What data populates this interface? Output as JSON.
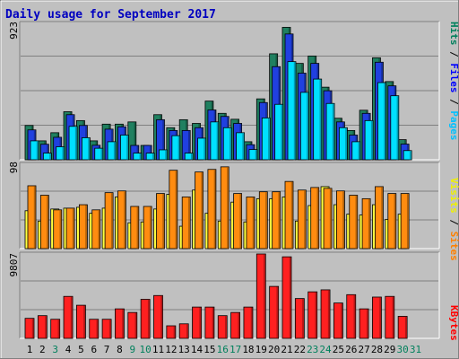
{
  "chart_data": [
    {
      "panel": "pages-files-hits",
      "type": "bar",
      "title": "Daily usage for September 2017",
      "y_max_label": "923",
      "ylim": [
        0,
        923
      ],
      "grid": true,
      "legend": {
        "placement": "right",
        "items": [
          {
            "text": "Hits",
            "color": "#00805c"
          },
          {
            "text": "Files",
            "color": "#0000ff"
          },
          {
            "text": "Pages",
            "color": "#00c0ff"
          }
        ],
        "separator": " / "
      },
      "categories": [
        "1",
        "2",
        "3",
        "4",
        "5",
        "6",
        "7",
        "8",
        "9",
        "10",
        "11",
        "12",
        "13",
        "14",
        "15",
        "16",
        "17",
        "18",
        "19",
        "20",
        "21",
        "22",
        "23",
        "24",
        "25",
        "26",
        "27",
        "28",
        "29",
        "30",
        "31"
      ],
      "series": [
        {
          "name": "Hits",
          "color": "#208060",
          "values": [
            232,
            128,
            183,
            325,
            265,
            128,
            241,
            241,
            256,
            97,
            305,
            217,
            271,
            246,
            397,
            314,
            274,
            122,
            412,
            717,
            896,
            652,
            702,
            491,
            281,
            198,
            335,
            690,
            529,
            136,
            0
          ]
        },
        {
          "name": "Files",
          "color": "#2040e0",
          "values": [
            202,
            105,
            152,
            305,
            232,
            98,
            207,
            223,
            97,
            97,
            271,
            198,
            198,
            217,
            337,
            293,
            246,
            102,
            387,
            630,
            851,
            586,
            652,
            467,
            256,
            167,
            314,
            660,
            500,
            106,
            0
          ]
        },
        {
          "name": "Pages",
          "color": "#00e0ff",
          "values": [
            128,
            45,
            88,
            226,
            149,
            78,
            122,
            167,
            45,
            45,
            67,
            163,
            45,
            146,
            256,
            217,
            183,
            69,
            283,
            375,
            664,
            456,
            546,
            381,
            217,
            122,
            265,
            522,
            433,
            62,
            0
          ]
        }
      ]
    },
    {
      "panel": "sites-visits",
      "type": "bar",
      "y_max_label": "98",
      "ylim": [
        0,
        98
      ],
      "grid": true,
      "legend": {
        "placement": "right",
        "items": [
          {
            "text": "Visits",
            "color": "#f0f000"
          },
          {
            "text": "Sites",
            "color": "#ff8000"
          }
        ],
        "separator": " / "
      },
      "categories": [
        "1",
        "2",
        "3",
        "4",
        "5",
        "6",
        "7",
        "8",
        "9",
        "10",
        "11",
        "12",
        "13",
        "14",
        "15",
        "16",
        "17",
        "18",
        "19",
        "20",
        "21",
        "22",
        "23",
        "24",
        "25",
        "26",
        "27",
        "28",
        "29",
        "30",
        "31"
      ],
      "series": [
        {
          "name": "Visits",
          "color": "#ffff40",
          "values": [
            44,
            32,
            46,
            47,
            48,
            41,
            47,
            60,
            30,
            31,
            46,
            63,
            26,
            68,
            41,
            32,
            54,
            31,
            58,
            58,
            60,
            32,
            50,
            72,
            51,
            40,
            39,
            51,
            34,
            40,
            0
          ]
        },
        {
          "name": "Sites",
          "color": "#ff8c10",
          "values": [
            73,
            62,
            45,
            47,
            51,
            45,
            65,
            67,
            49,
            49,
            64,
            91,
            60,
            89,
            92,
            95,
            64,
            60,
            66,
            66,
            78,
            68,
            71,
            70,
            67,
            62,
            58,
            72,
            64,
            64,
            0
          ]
        }
      ]
    },
    {
      "panel": "kbytes",
      "type": "bar",
      "y_max_label": "9807",
      "ylim": [
        0,
        9807
      ],
      "grid": true,
      "legend": {
        "placement": "right",
        "items": [
          {
            "text": "KBytes",
            "color": "#ff0000"
          }
        ]
      },
      "categories": [
        "1",
        "2",
        "3",
        "4",
        "5",
        "6",
        "7",
        "8",
        "9",
        "10",
        "11",
        "12",
        "13",
        "14",
        "15",
        "16",
        "17",
        "18",
        "19",
        "20",
        "21",
        "22",
        "23",
        "24",
        "25",
        "26",
        "27",
        "28",
        "29",
        "30",
        "31"
      ],
      "series": [
        {
          "name": "KBytes",
          "color": "#ff2020",
          "values": [
            2330,
            2640,
            2220,
            4880,
            3850,
            2220,
            2220,
            3430,
            3010,
            4540,
            4980,
            1460,
            1690,
            3640,
            3640,
            2640,
            3010,
            3640,
            9807,
            6040,
            9480,
            4630,
            5410,
            5640,
            4110,
            5080,
            3430,
            4800,
            4880,
            2560,
            0
          ]
        }
      ]
    }
  ],
  "day_labels": [
    {
      "text": "1",
      "weekend": false
    },
    {
      "text": "2",
      "weekend": false
    },
    {
      "text": "3",
      "weekend": true
    },
    {
      "text": "4",
      "weekend": false
    },
    {
      "text": "5",
      "weekend": false
    },
    {
      "text": "6",
      "weekend": false
    },
    {
      "text": "7",
      "weekend": false
    },
    {
      "text": "8",
      "weekend": false
    },
    {
      "text": "9",
      "weekend": true
    },
    {
      "text": "10",
      "weekend": true
    },
    {
      "text": "11",
      "weekend": false
    },
    {
      "text": "12",
      "weekend": false
    },
    {
      "text": "13",
      "weekend": false
    },
    {
      "text": "14",
      "weekend": false
    },
    {
      "text": "15",
      "weekend": false
    },
    {
      "text": "16",
      "weekend": true
    },
    {
      "text": "17",
      "weekend": true
    },
    {
      "text": "18",
      "weekend": false
    },
    {
      "text": "19",
      "weekend": false
    },
    {
      "text": "20",
      "weekend": false
    },
    {
      "text": "21",
      "weekend": false
    },
    {
      "text": "22",
      "weekend": false
    },
    {
      "text": "23",
      "weekend": true
    },
    {
      "text": "24",
      "weekend": true
    },
    {
      "text": "25",
      "weekend": false
    },
    {
      "text": "26",
      "weekend": false
    },
    {
      "text": "27",
      "weekend": false
    },
    {
      "text": "28",
      "weekend": false
    },
    {
      "text": "29",
      "weekend": false
    },
    {
      "text": "30",
      "weekend": true
    },
    {
      "text": "31",
      "weekend": true
    }
  ],
  "colors": {
    "background": "#c0c0c0",
    "weekday_label": "#000000",
    "weekend_label": "#00805c",
    "title": "#0000c0",
    "gridline": "#808080"
  }
}
